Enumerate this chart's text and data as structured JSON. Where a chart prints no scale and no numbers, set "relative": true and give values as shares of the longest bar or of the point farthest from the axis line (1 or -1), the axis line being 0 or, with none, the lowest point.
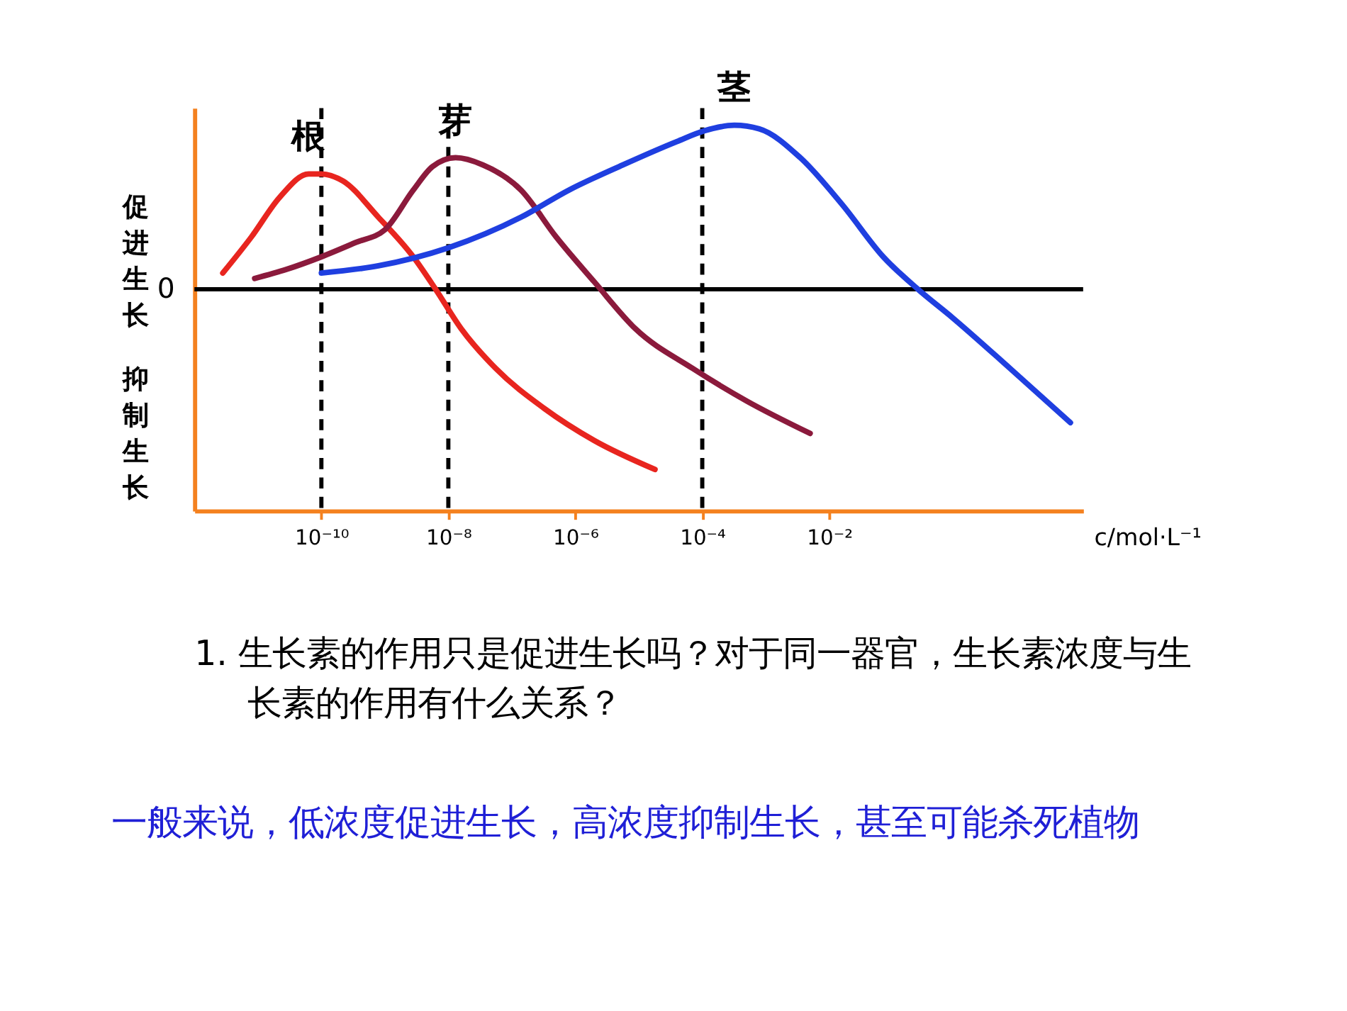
{
  "chart_data": {
    "type": "line",
    "relative": true,
    "log": "x",
    "xlabel": "c/mol·L⁻¹",
    "xlim": [
      1e-12,
      100
    ],
    "xticks": [
      {
        "value": 1e-10,
        "label": "10⁻¹⁰"
      },
      {
        "value": 1e-08,
        "label": "10⁻⁸"
      },
      {
        "value": 1e-06,
        "label": "10⁻⁶"
      },
      {
        "value": 0.0001,
        "label": "10⁻⁴"
      },
      {
        "value": 0.01,
        "label": "10⁻²"
      }
    ],
    "line_style": "solid",
    "series": [
      {
        "name": "根",
        "color": "#e8251f",
        "x": [
          2.8e-12,
          7.9e-12,
          2.2e-11,
          6.3e-11,
          1e-10,
          2.2e-10,
          7.9e-10,
          2.8e-09,
          6.3e-09,
          1.6e-08,
          5.6e-08,
          3.2e-07,
          2e-06,
          1.8e-05
        ],
        "values": [
          0.09,
          0.29,
          0.51,
          0.64,
          0.64,
          0.6,
          0.4,
          0.18,
          0,
          -0.22,
          -0.44,
          -0.66,
          -0.84,
          -1
        ]
      },
      {
        "name": "芽",
        "color": "#8b1a3c",
        "x": [
          8.9e-12,
          2.8e-11,
          1e-10,
          3.5e-10,
          1e-09,
          2.8e-09,
          5.6e-09,
          1.3e-08,
          3.5e-08,
          1.4e-07,
          5e-07,
          2e-06,
          8.9e-06,
          7.1e-05,
          0.0005,
          0.005
        ],
        "values": [
          0.06,
          0.11,
          0.18,
          0.26,
          0.33,
          0.55,
          0.68,
          0.73,
          0.69,
          0.55,
          0.29,
          0.04,
          -0.22,
          -0.44,
          -0.62,
          -0.8
        ]
      },
      {
        "name": "茎",
        "color": "#1f3fe0",
        "x": [
          1e-10,
          7.9e-10,
          1e-08,
          1.4e-07,
          7.9e-07,
          5.6e-06,
          4e-05,
          0.00011,
          0.00032,
          0.00079,
          0.0035,
          0.016,
          0.071,
          0.25,
          0.89,
          7.1,
          63
        ],
        "values": [
          0.09,
          0.13,
          0.23,
          0.4,
          0.55,
          0.69,
          0.82,
          0.88,
          0.91,
          0.89,
          0.73,
          0.47,
          0.18,
          0,
          -0.16,
          -0.44,
          -0.74
        ]
      }
    ],
    "ref_lines": [
      {
        "axis": "y",
        "value": 0,
        "label": "0",
        "color": "#000000"
      },
      {
        "axis": "x",
        "value": 1e-10,
        "color": "#000000",
        "line_style": "dashed"
      },
      {
        "axis": "x",
        "value": 1e-08,
        "color": "#000000",
        "line_style": "dashed"
      },
      {
        "axis": "x",
        "value": 0.0001,
        "color": "#000000",
        "line_style": "dashed"
      }
    ],
    "annotations": [
      "促进生长",
      "抑制生长",
      "1. 生长素的作用只是促进生长吗？对于同一器官，生长素浓度与生长素的作用有什么关系？",
      "一般来说，低浓度促进生长，高浓度抑制生长，甚至可能杀死植物"
    ]
  }
}
